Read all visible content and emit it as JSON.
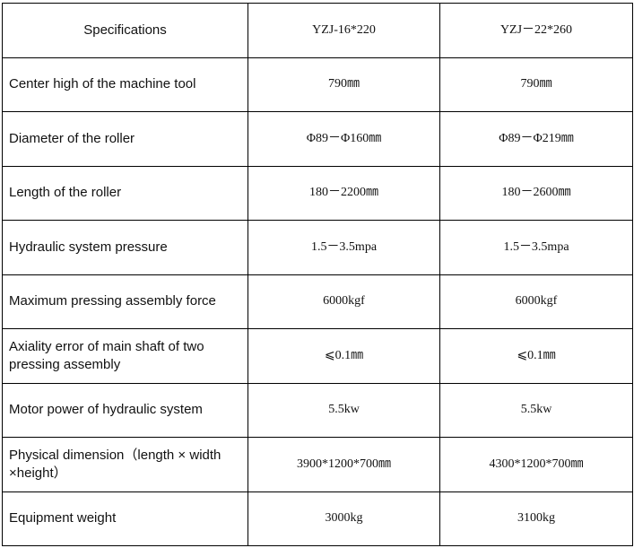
{
  "header": {
    "label": "Specifications",
    "models": [
      "YZJ-16*220",
      "YZJ－22*260"
    ]
  },
  "rows": [
    {
      "label": "Center high of the machine tool",
      "values": [
        "790㎜",
        "790㎜"
      ]
    },
    {
      "label": "Diameter of the roller",
      "values": [
        "Φ89－Φ160㎜",
        "Φ89－Φ219㎜"
      ]
    },
    {
      "label": "Length of the roller",
      "values": [
        "180－2200㎜",
        "180－2600㎜"
      ]
    },
    {
      "label": "Hydraulic system pressure",
      "values": [
        "1.5－3.5mpa",
        "1.5－3.5mpa"
      ]
    },
    {
      "label": "Maximum pressing assembly force",
      "values": [
        "6000kgf",
        "6000kgf"
      ]
    },
    {
      "label": "Axiality error of main shaft of two pressing assembly",
      "values": [
        "⩽0.1㎜",
        "⩽0.1㎜"
      ]
    },
    {
      "label": "Motor power of hydraulic system",
      "values": [
        "5.5kw",
        "5.5kw"
      ]
    },
    {
      "label": "Physical dimension（length × width ×height）",
      "values": [
        "3900*1200*700㎜",
        "4300*1200*700㎜"
      ]
    },
    {
      "label": "Equipment weight",
      "values": [
        "3000kg",
        "3100kg"
      ]
    }
  ]
}
